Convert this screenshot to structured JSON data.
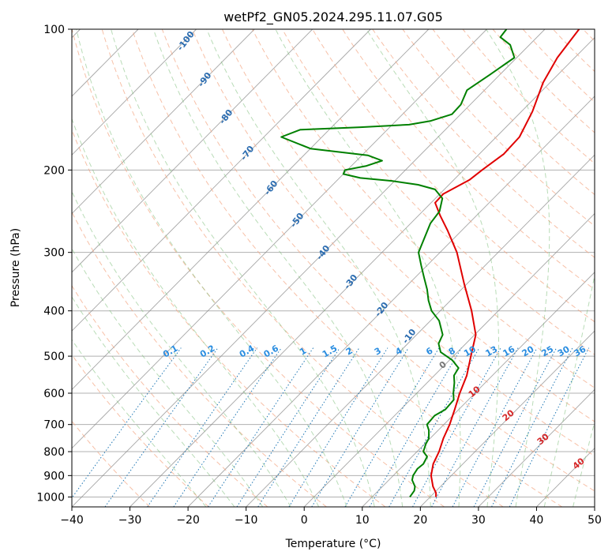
{
  "chart_data": {
    "type": "line",
    "title": "wetPf2_GN05.2024.295.11.07.G05",
    "xlabel": "Temperature (°C)",
    "ylabel": "Pressure (hPa)",
    "xlim": [
      -40,
      50
    ],
    "ylim": [
      1050,
      100
    ],
    "y_scale": "log",
    "skew": "skew-T",
    "grid": true,
    "x_ticks": [
      -40,
      -30,
      -20,
      -10,
      0,
      10,
      20,
      30,
      40,
      50
    ],
    "y_ticks": [
      1000,
      900,
      800,
      700,
      600,
      500,
      400,
      300,
      200,
      100
    ],
    "background_lines": {
      "dry_adiabats_color": "#f4a582",
      "moist_adiabats_color": "#7fbf7b",
      "mixing_ratio_color": "#1f77b4",
      "isotherm_color": "#888888"
    },
    "dry_adiabat_labels": [
      "-100",
      "-90",
      "-80",
      "-70",
      "-60",
      "-50",
      "-40",
      "-30",
      "-20",
      "-10"
    ],
    "mixing_ratio_labels": [
      "0.1",
      "0.2",
      "0.4",
      "0.6",
      "1",
      "1.5",
      "2",
      "3",
      "4",
      "6",
      "8",
      "10",
      "13",
      "16",
      "20",
      "25",
      "30",
      "36"
    ],
    "moist_adiabat_labels": [
      "0",
      "10",
      "20",
      "30",
      "40"
    ],
    "series": [
      {
        "color": "#e00000",
        "points": [
          {
            "p": 1000,
            "t": 21
          },
          {
            "p": 980,
            "t": 20.3
          },
          {
            "p": 950,
            "t": 18.7
          },
          {
            "p": 900,
            "t": 16.5
          },
          {
            "p": 850,
            "t": 14.9
          },
          {
            "p": 800,
            "t": 13.8
          },
          {
            "p": 750,
            "t": 12.3
          },
          {
            "p": 700,
            "t": 11.0
          },
          {
            "p": 650,
            "t": 9.3
          },
          {
            "p": 600,
            "t": 7.4
          },
          {
            "p": 550,
            "t": 5.6
          },
          {
            "p": 500,
            "t": 3.0
          },
          {
            "p": 450,
            "t": 0.2
          },
          {
            "p": 400,
            "t": -4.6
          },
          {
            "p": 350,
            "t": -10.5
          },
          {
            "p": 300,
            "t": -17.1
          },
          {
            "p": 270,
            "t": -22.3
          },
          {
            "p": 250,
            "t": -26.3
          },
          {
            "p": 235,
            "t": -29.3
          },
          {
            "p": 225,
            "t": -29.4
          },
          {
            "p": 210,
            "t": -27.3
          },
          {
            "p": 200,
            "t": -26.8
          },
          {
            "p": 185,
            "t": -25.8
          },
          {
            "p": 170,
            "t": -26.0
          },
          {
            "p": 150,
            "t": -28.1
          },
          {
            "p": 130,
            "t": -31.2
          },
          {
            "p": 115,
            "t": -33.0
          },
          {
            "p": 100,
            "t": -34.1
          }
        ]
      },
      {
        "color": "#008000",
        "points": [
          {
            "p": 1000,
            "t": 16.5
          },
          {
            "p": 970,
            "t": 16.2
          },
          {
            "p": 950,
            "t": 15.6
          },
          {
            "p": 920,
            "t": 14.0
          },
          {
            "p": 900,
            "t": 13.4
          },
          {
            "p": 870,
            "t": 13.0
          },
          {
            "p": 850,
            "t": 13.2
          },
          {
            "p": 820,
            "t": 12.6
          },
          {
            "p": 800,
            "t": 11.1
          },
          {
            "p": 770,
            "t": 10.2
          },
          {
            "p": 750,
            "t": 9.8
          },
          {
            "p": 720,
            "t": 8.4
          },
          {
            "p": 700,
            "t": 7.1
          },
          {
            "p": 670,
            "t": 6.9
          },
          {
            "p": 650,
            "t": 7.7
          },
          {
            "p": 620,
            "t": 7.5
          },
          {
            "p": 600,
            "t": 6.3
          },
          {
            "p": 570,
            "t": 4.7
          },
          {
            "p": 550,
            "t": 3.4
          },
          {
            "p": 530,
            "t": 2.9
          },
          {
            "p": 510,
            "t": 0.5
          },
          {
            "p": 490,
            "t": -2.9
          },
          {
            "p": 470,
            "t": -4.7
          },
          {
            "p": 450,
            "t": -5.5
          },
          {
            "p": 420,
            "t": -8.5
          },
          {
            "p": 400,
            "t": -11.5
          },
          {
            "p": 380,
            "t": -13.8
          },
          {
            "p": 360,
            "t": -15.9
          },
          {
            "p": 340,
            "t": -18.4
          },
          {
            "p": 320,
            "t": -21.0
          },
          {
            "p": 300,
            "t": -23.7
          },
          {
            "p": 280,
            "t": -25.1
          },
          {
            "p": 260,
            "t": -26.6
          },
          {
            "p": 245,
            "t": -27.1
          },
          {
            "p": 230,
            "t": -28.8
          },
          {
            "p": 220,
            "t": -31.6
          },
          {
            "p": 215,
            "t": -35.3
          },
          {
            "p": 211,
            "t": -40.5
          },
          {
            "p": 208,
            "t": -46.4
          },
          {
            "p": 204,
            "t": -50.0
          },
          {
            "p": 200,
            "t": -50.4
          },
          {
            "p": 196,
            "t": -47.4
          },
          {
            "p": 191,
            "t": -45.6
          },
          {
            "p": 186,
            "t": -49.0
          },
          {
            "p": 180,
            "t": -60.0
          },
          {
            "p": 170,
            "t": -67.0
          },
          {
            "p": 164,
            "t": -65.0
          },
          {
            "p": 162,
            "t": -55.0
          },
          {
            "p": 160,
            "t": -47.1
          },
          {
            "p": 157,
            "t": -44.0
          },
          {
            "p": 152,
            "t": -41.5
          },
          {
            "p": 145,
            "t": -41.6
          },
          {
            "p": 135,
            "t": -43.0
          },
          {
            "p": 125,
            "t": -41.7
          },
          {
            "p": 115,
            "t": -40.4
          },
          {
            "p": 108,
            "t": -43.3
          },
          {
            "p": 104,
            "t": -46.3
          },
          {
            "p": 100,
            "t": -46.6
          }
        ]
      }
    ]
  }
}
